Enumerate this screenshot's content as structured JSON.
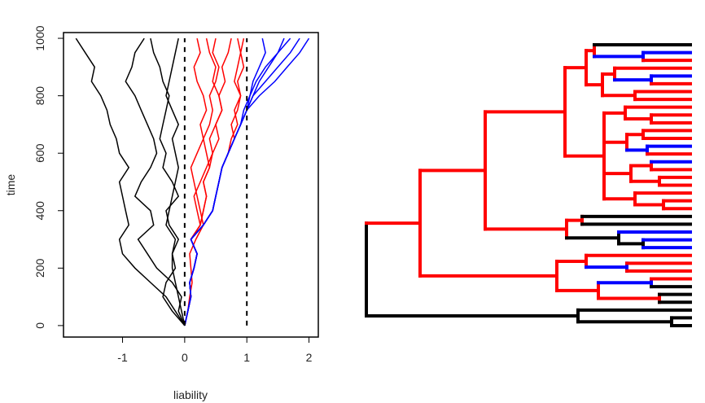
{
  "chart_data": [
    {
      "type": "line",
      "title": "",
      "xlabel": "liability",
      "ylabel": "time",
      "xlim": [
        -1.95,
        2.15
      ],
      "ylim": [
        -40,
        1020
      ],
      "xticks": [
        -1,
        0,
        1,
        2
      ],
      "xtick_labels": [
        "-1",
        "0",
        "1",
        "2"
      ],
      "yticks": [
        0,
        200,
        400,
        600,
        800,
        1000
      ],
      "ytick_labels": [
        "0",
        "200",
        "400",
        "600",
        "800",
        "1000"
      ],
      "thresholds": [
        0,
        1
      ],
      "threshold_style": "dashed",
      "color_by_state": {
        "below_0": "#000000",
        "between_0_and_1": "#ff0000",
        "above_1": "#0000ff"
      },
      "grid": false,
      "series": [
        {
          "id": "lineage-1",
          "color": "#000000",
          "time": [
            0,
            50,
            100,
            150,
            200,
            250,
            300,
            350,
            400,
            450,
            500,
            550,
            600,
            650,
            700,
            750,
            800,
            850,
            900,
            950,
            1000
          ],
          "liability": [
            0,
            -0.15,
            -0.3,
            -0.55,
            -0.8,
            -1.0,
            -1.05,
            -0.9,
            -0.95,
            -1.0,
            -1.05,
            -0.9,
            -1.05,
            -1.1,
            -1.2,
            -1.25,
            -1.35,
            -1.5,
            -1.45,
            -1.6,
            -1.75
          ]
        },
        {
          "id": "lineage-2",
          "color": "#000000",
          "time": [
            0,
            50,
            100,
            150,
            200,
            250,
            300,
            350,
            400,
            450,
            500,
            550,
            600,
            650,
            700,
            750,
            800,
            850,
            900,
            950,
            1000
          ],
          "liability": [
            0,
            -0.1,
            -0.05,
            -0.2,
            -0.45,
            -0.6,
            -0.75,
            -0.5,
            -0.55,
            -0.8,
            -0.7,
            -0.55,
            -0.45,
            -0.5,
            -0.6,
            -0.7,
            -0.8,
            -0.95,
            -0.85,
            -0.8,
            -0.65
          ]
        },
        {
          "id": "lineage-3",
          "color": "#000000",
          "time": [
            0,
            50,
            100,
            150,
            200,
            250,
            300,
            350,
            400,
            450,
            500,
            550,
            600,
            650,
            700,
            750,
            800,
            850,
            900,
            950,
            1000
          ],
          "liability": [
            0,
            -0.2,
            -0.35,
            -0.3,
            -0.15,
            -0.2,
            -0.1,
            -0.25,
            -0.3,
            -0.1,
            -0.2,
            -0.35,
            -0.3,
            -0.4,
            -0.35,
            -0.3,
            -0.25,
            -0.35,
            -0.4,
            -0.5,
            -0.55
          ]
        },
        {
          "id": "lineage-4",
          "color": "#000000",
          "time": [
            0,
            50,
            100,
            150,
            200,
            250,
            300,
            350,
            400,
            450,
            500,
            550,
            600,
            650,
            700,
            750,
            800,
            850,
            900,
            950,
            1000
          ],
          "liability": [
            0,
            -0.05,
            -0.1,
            -0.15,
            -0.2,
            -0.2,
            -0.15,
            -0.3,
            -0.25,
            -0.2,
            -0.15,
            -0.1,
            -0.15,
            -0.2,
            -0.1,
            -0.2,
            -0.3,
            -0.25,
            -0.2,
            -0.15,
            -0.1
          ]
        },
        {
          "id": "lineage-5",
          "color": "#ff0000",
          "time": [
            0,
            50,
            100,
            150,
            200,
            250,
            300,
            350,
            400,
            450,
            500,
            550,
            600,
            650,
            700,
            750,
            800,
            850,
            900,
            950,
            1000
          ],
          "liability": [
            0,
            0.05,
            0.1,
            0.08,
            0.15,
            0.2,
            0.1,
            0.25,
            0.3,
            0.35,
            0.3,
            0.4,
            0.45,
            0.55,
            0.5,
            0.6,
            0.55,
            0.65,
            0.6,
            0.7,
            0.75
          ]
        },
        {
          "id": "lineage-6",
          "color": "#ff0000",
          "time": [
            0,
            50,
            100,
            150,
            200,
            250,
            300,
            350,
            400,
            450,
            500,
            550,
            600,
            650,
            700,
            750,
            800,
            850,
            900,
            950,
            1000
          ],
          "liability": [
            0,
            0.05,
            0.08,
            0.12,
            0.1,
            0.08,
            0.18,
            0.3,
            0.25,
            0.2,
            0.15,
            0.1,
            0.2,
            0.3,
            0.25,
            0.35,
            0.3,
            0.2,
            0.15,
            0.25,
            0.2
          ]
        },
        {
          "id": "lineage-7",
          "color": "#ff0000",
          "time": [
            0,
            50,
            100,
            150,
            200,
            250,
            300,
            350,
            400,
            450,
            500,
            550,
            600,
            650,
            700,
            750,
            800,
            850,
            900,
            950,
            1000
          ],
          "liability": [
            0,
            0.05,
            0.1,
            0.08,
            0.15,
            0.2,
            0.1,
            0.3,
            0.45,
            0.5,
            0.55,
            0.6,
            0.7,
            0.8,
            0.75,
            0.85,
            0.9,
            0.8,
            0.85,
            0.9,
            0.95
          ]
        },
        {
          "id": "lineage-8",
          "color": "#ff0000",
          "time": [
            0,
            50,
            100,
            150,
            200,
            250,
            300,
            350,
            400,
            450,
            500,
            550,
            600,
            650,
            700,
            750,
            800,
            850,
            900,
            950,
            1000
          ],
          "liability": [
            0,
            0.05,
            0.1,
            0.08,
            0.15,
            0.2,
            0.1,
            0.25,
            0.2,
            0.15,
            0.25,
            0.35,
            0.45,
            0.4,
            0.5,
            0.6,
            0.55,
            0.45,
            0.5,
            0.4,
            0.35
          ]
        },
        {
          "id": "lineage-9",
          "color": "#ff0000",
          "time": [
            0,
            50,
            100,
            150,
            200,
            250,
            300,
            350,
            400,
            450,
            500,
            550,
            600,
            650,
            700,
            750,
            800,
            850,
            900,
            950,
            1000
          ],
          "liability": [
            0,
            0.05,
            0.1,
            0.08,
            0.15,
            0.2,
            0.1,
            0.25,
            0.3,
            0.35,
            0.3,
            0.4,
            0.35,
            0.3,
            0.4,
            0.45,
            0.4,
            0.5,
            0.55,
            0.45,
            0.5
          ]
        },
        {
          "id": "lineage-10",
          "color": "#ff0000",
          "time": [
            0,
            50,
            100,
            150,
            200,
            250,
            300,
            350,
            400,
            450,
            500,
            550,
            600,
            650,
            700,
            750,
            800,
            850,
            900,
            950,
            1000
          ],
          "liability": [
            0,
            0.05,
            0.1,
            0.08,
            0.15,
            0.2,
            0.1,
            0.3,
            0.45,
            0.5,
            0.55,
            0.6,
            0.7,
            0.75,
            0.85,
            0.8,
            0.9,
            0.85,
            0.95,
            0.9,
            0.85
          ]
        },
        {
          "id": "lineage-11",
          "color": "#0000ff",
          "time": [
            0,
            50,
            100,
            150,
            200,
            250,
            300,
            350,
            400,
            450,
            500,
            550,
            600,
            650,
            700,
            750,
            800,
            850,
            900,
            950,
            1000
          ],
          "liability": [
            0,
            0.05,
            0.1,
            0.08,
            0.15,
            0.2,
            0.1,
            0.3,
            0.45,
            0.5,
            0.55,
            0.6,
            0.7,
            0.8,
            0.9,
            1.0,
            1.05,
            1.1,
            1.2,
            1.3,
            1.25
          ]
        },
        {
          "id": "lineage-12",
          "color": "#0000ff",
          "time": [
            0,
            50,
            100,
            150,
            200,
            250,
            300,
            350,
            400,
            450,
            500,
            550,
            600,
            650,
            700,
            750,
            800,
            850,
            900,
            950,
            1000
          ],
          "liability": [
            0,
            0.05,
            0.1,
            0.08,
            0.15,
            0.2,
            0.1,
            0.3,
            0.45,
            0.5,
            0.55,
            0.6,
            0.7,
            0.8,
            0.9,
            1.0,
            1.1,
            1.2,
            1.35,
            1.5,
            1.6
          ]
        },
        {
          "id": "lineage-13",
          "color": "#0000ff",
          "time": [
            0,
            50,
            100,
            150,
            200,
            250,
            300,
            350,
            400,
            450,
            500,
            550,
            600,
            650,
            700,
            750,
            800,
            850,
            900,
            950,
            1000
          ],
          "liability": [
            0,
            0.05,
            0.1,
            0.08,
            0.15,
            0.2,
            0.1,
            0.3,
            0.45,
            0.5,
            0.55,
            0.6,
            0.7,
            0.8,
            0.9,
            0.95,
            1.05,
            1.15,
            1.3,
            1.5,
            1.7
          ]
        },
        {
          "id": "lineage-14",
          "color": "#0000ff",
          "time": [
            0,
            50,
            100,
            150,
            200,
            250,
            300,
            350,
            400,
            450,
            500,
            550,
            600,
            650,
            700,
            750,
            800,
            850,
            900,
            950,
            1000
          ],
          "liability": [
            0,
            0.05,
            0.1,
            0.08,
            0.15,
            0.2,
            0.1,
            0.3,
            0.45,
            0.5,
            0.55,
            0.6,
            0.7,
            0.8,
            0.9,
            1.0,
            1.1,
            1.3,
            1.5,
            1.7,
            1.85
          ]
        },
        {
          "id": "lineage-15",
          "color": "#0000ff",
          "time": [
            0,
            50,
            100,
            150,
            200,
            250,
            300,
            350,
            400,
            450,
            500,
            550,
            600,
            650,
            700,
            750,
            800,
            850,
            900,
            950,
            1000
          ],
          "liability": [
            0,
            0.05,
            0.1,
            0.08,
            0.15,
            0.2,
            0.1,
            0.3,
            0.45,
            0.5,
            0.55,
            0.6,
            0.7,
            0.8,
            0.9,
            1.0,
            1.2,
            1.45,
            1.65,
            1.85,
            2.0
          ]
        }
      ]
    },
    {
      "type": "tree",
      "title": "",
      "colors": {
        "black": "#000000",
        "red": "#ff0000",
        "blue": "#0000ff"
      },
      "tips": [
        "black",
        "blue",
        "red",
        "red",
        "blue",
        "red",
        "red",
        "red",
        "red",
        "red",
        "red",
        "red",
        "red",
        "blue",
        "red",
        "blue",
        "red",
        "red",
        "red",
        "red",
        "red",
        "red",
        "black",
        "black",
        "blue",
        "blue",
        "blue",
        "red",
        "red",
        "red",
        "red",
        "black",
        "black",
        "black"
      ]
    }
  ]
}
